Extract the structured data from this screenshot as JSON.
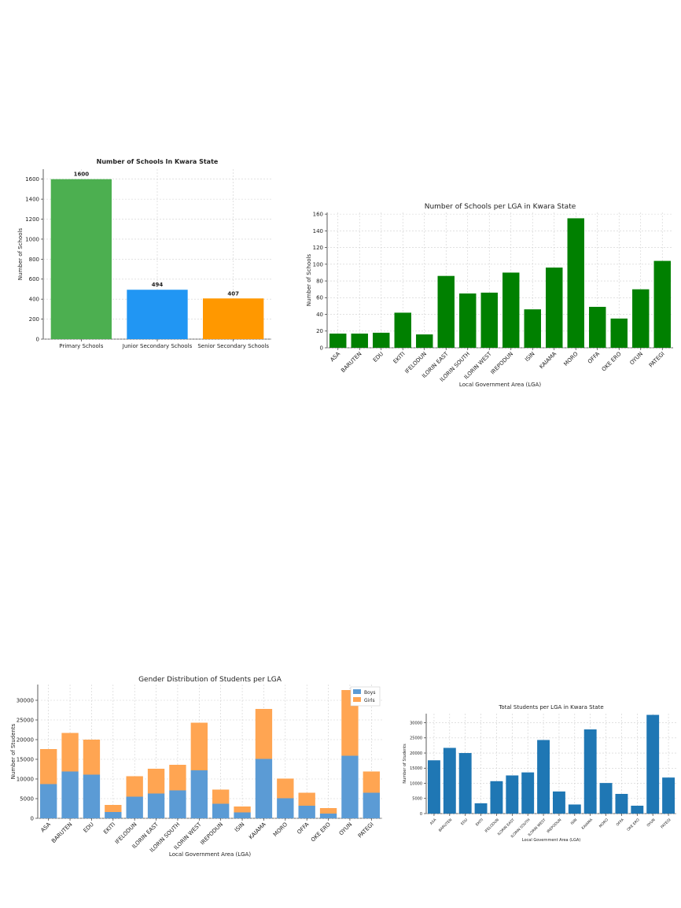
{
  "chart_data": [
    {
      "type": "bar",
      "title": "Number of Schools In Kwara State",
      "xlabel": "",
      "ylabel": "Number of Schools",
      "ylim": [
        0,
        1700
      ],
      "yticks": [
        0,
        200,
        400,
        600,
        800,
        1000,
        1200,
        1400,
        1600
      ],
      "grid": true,
      "categories": [
        "Primary Schools",
        "Junior Secondary Schools",
        "Senior Secondary Schools"
      ],
      "values": [
        1600,
        494,
        407
      ],
      "value_labels": [
        "1600",
        "494",
        "407"
      ],
      "colors": [
        "#4caf50",
        "#2196f3",
        "#ff9800"
      ]
    },
    {
      "type": "bar",
      "title": "Number of Schools per LGA in Kwara State",
      "xlabel": "Local Government Area (LGA)",
      "ylabel": "Number of Schools",
      "ylim": [
        0,
        162
      ],
      "yticks": [
        0,
        20,
        40,
        60,
        80,
        100,
        120,
        140,
        160
      ],
      "grid": true,
      "categories": [
        "ASA",
        "BARUTEN",
        "EDU",
        "EKITI",
        "IFELODUN",
        "ILORIN EAST",
        "ILORIN SOUTH",
        "ILORIN WEST",
        "IREPODUN",
        "ISIN",
        "KAIAMA",
        "MORO",
        "OFFA",
        "OKE ERO",
        "OYUN",
        "PATEGI"
      ],
      "values": [
        17,
        17,
        18,
        42,
        16,
        86,
        65,
        66,
        90,
        46,
        96,
        155,
        49,
        35,
        70,
        104
      ],
      "color": "#008000"
    },
    {
      "type": "bar",
      "stacked": true,
      "title": "Gender Distribution of Students per LGA",
      "xlabel": "Local Government Area (LGA)",
      "ylabel": "Number of Students",
      "ylim": [
        0,
        34000
      ],
      "yticks": [
        0,
        5000,
        10000,
        15000,
        20000,
        25000,
        30000
      ],
      "grid": true,
      "legend": "top-right",
      "categories": [
        "ASA",
        "BARUTEN",
        "EDU",
        "EKITI",
        "IFELODUN",
        "ILORIN EAST",
        "ILORIN SOUTH",
        "ILORIN WEST",
        "IREPODUN",
        "ISIN",
        "KAIAMA",
        "MORO",
        "OFFA",
        "OKE ERO",
        "OYUN",
        "PATEGI"
      ],
      "series": [
        {
          "name": "Boys",
          "color": "#5b9bd5",
          "values": [
            8700,
            11900,
            11100,
            1600,
            5500,
            6300,
            7100,
            12200,
            3700,
            1500,
            15100,
            5100,
            3200,
            1200,
            15900,
            6500
          ]
        },
        {
          "name": "Girls",
          "color": "#ffa552",
          "values": [
            8900,
            9800,
            8900,
            1800,
            5200,
            6300,
            6500,
            12100,
            3600,
            1500,
            12700,
            5000,
            3300,
            1400,
            16700,
            5400
          ]
        }
      ]
    },
    {
      "type": "bar",
      "title": "Total Students per LGA in Kwara State",
      "xlabel": "Local Government Area (LGA)",
      "ylabel": "Number of Students",
      "ylim": [
        0,
        33000
      ],
      "yticks": [
        0,
        5000,
        10000,
        15000,
        20000,
        25000,
        30000
      ],
      "grid": true,
      "categories": [
        "ASA",
        "BARUTEN",
        "EDU",
        "EKITI",
        "IFELODUN",
        "ILORIN EAST",
        "ILORIN SOUTH",
        "ILORIN WEST",
        "IREPODUN",
        "ISIN",
        "KAIAMA",
        "MORO",
        "OFFA",
        "OKE ERO",
        "OYUN",
        "PATEGI"
      ],
      "values": [
        17600,
        21700,
        20000,
        3400,
        10700,
        12600,
        13600,
        24300,
        7300,
        3000,
        27800,
        10100,
        6500,
        2600,
        32600,
        11900
      ],
      "color": "#1f77b4"
    }
  ]
}
